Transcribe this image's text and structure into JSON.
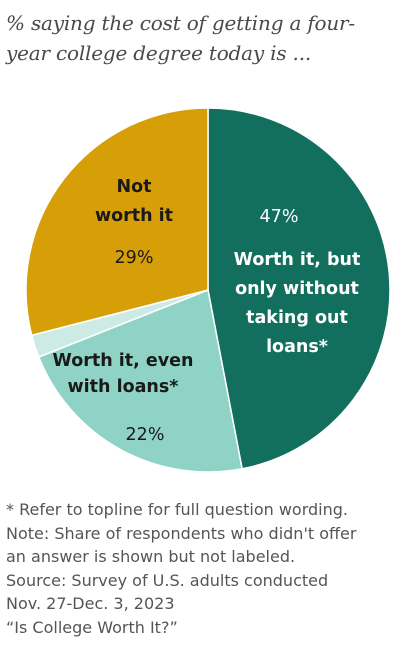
{
  "title_lines": [
    "% saying the cost of getting a four-",
    "year college degree today is ..."
  ],
  "chart_data": {
    "type": "pie",
    "start_angle_deg": 0,
    "direction": "clockwise",
    "colors": {
      "worth_without_loans": "#126f5d",
      "worth_with_loans": "#8fd2c6",
      "no_answer": "#cdebe5",
      "not_worth": "#d69e07",
      "separator": "#ffffff"
    },
    "slices": [
      {
        "key": "worth_without_loans",
        "value": 47,
        "value_label": "47%",
        "label_lines": [
          "Worth it, but",
          "only without",
          "taking out",
          "loans*"
        ],
        "text_color": "#ffffff"
      },
      {
        "key": "worth_with_loans",
        "value": 22,
        "value_label": "22%",
        "label_lines": [
          "Worth it, even",
          "with loans*"
        ],
        "text_color": "#1a1a1a"
      },
      {
        "key": "no_answer",
        "value": 2,
        "value_label": "",
        "label_lines": [],
        "text_color": "#1a1a1a"
      },
      {
        "key": "not_worth",
        "value": 29,
        "value_label": "29%",
        "label_lines": [
          "Not",
          "worth it"
        ],
        "text_color": "#1a1a1a"
      }
    ]
  },
  "notes": [
    "* Refer to topline for full question wording.",
    "Note: Share of respondents who didn't offer",
    "an answer is shown but not labeled.",
    "Source: Survey of U.S. adults conducted",
    "Nov. 27-Dec. 3, 2023",
    "“Is College Worth It?”"
  ]
}
